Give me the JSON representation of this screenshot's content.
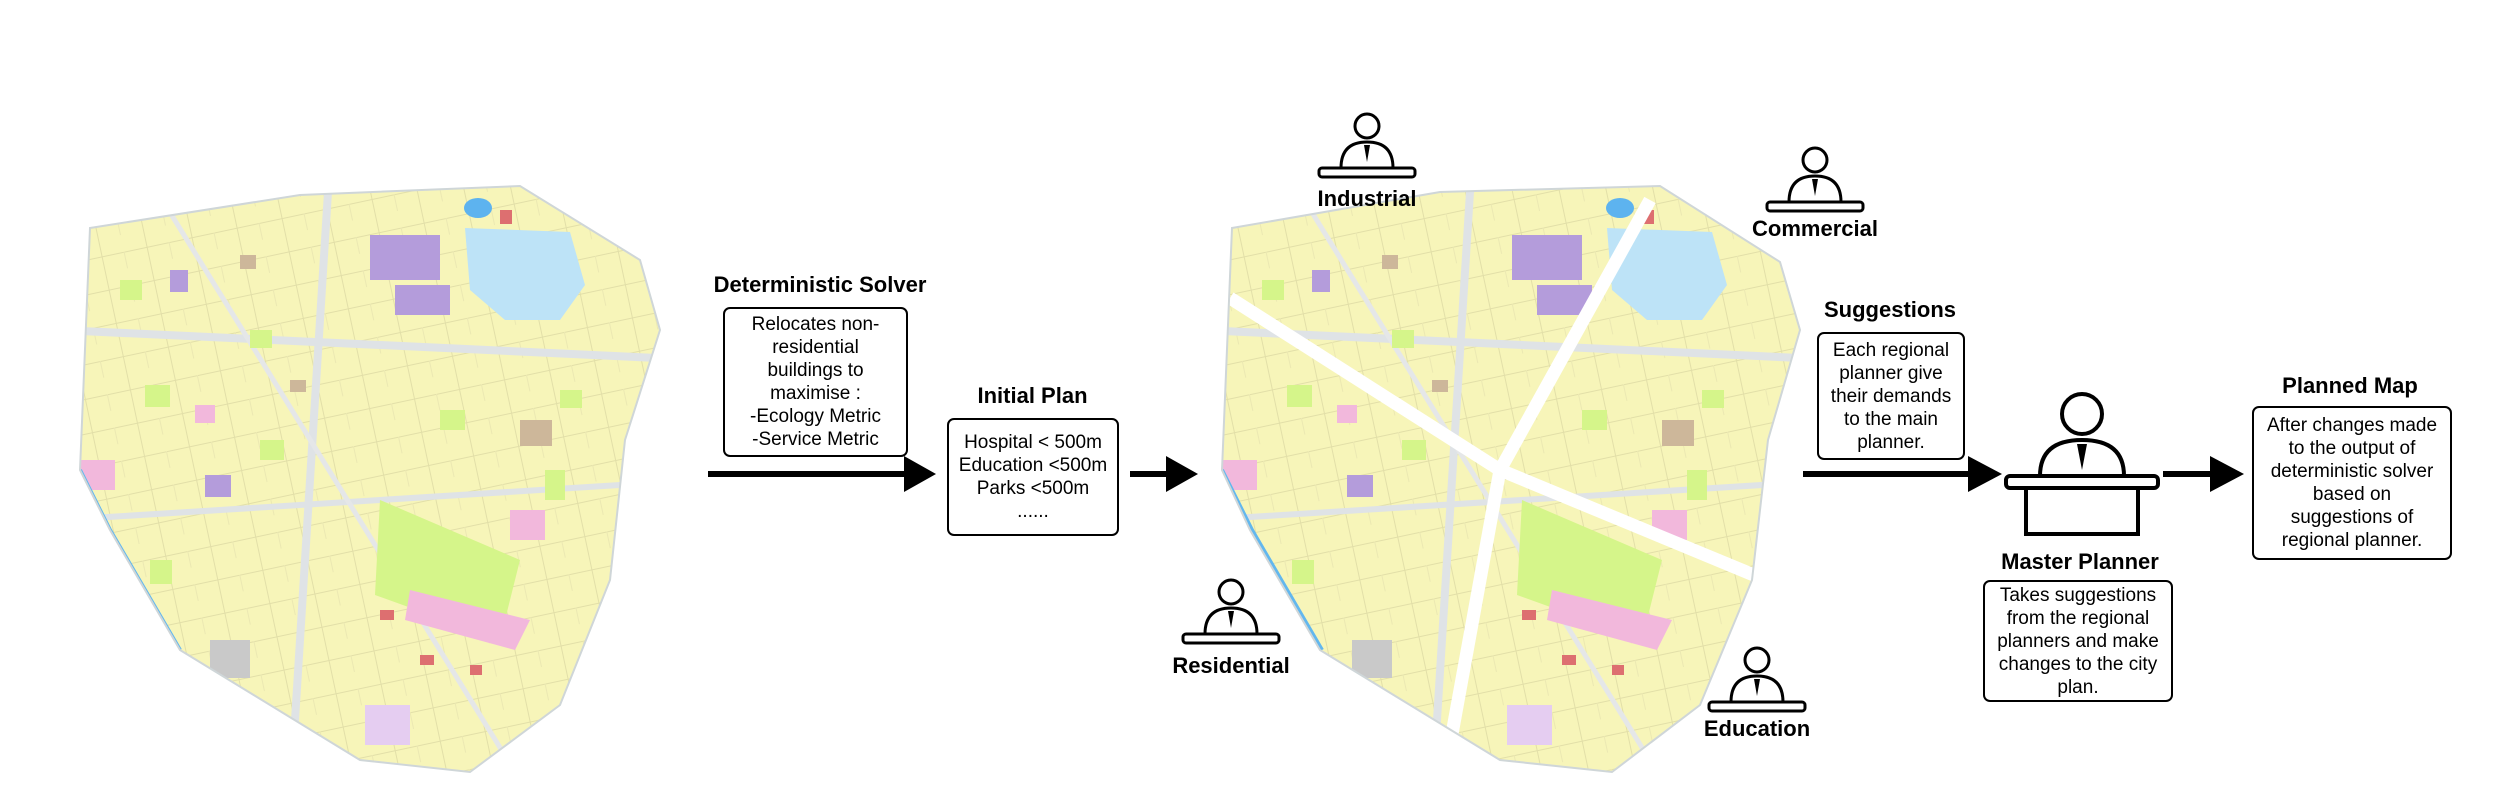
{
  "solver": {
    "title": "Deterministic Solver",
    "lines": [
      "Relocates non-",
      "residential",
      "buildings to",
      "maximise :",
      "-Ecology Metric",
      "-Service Metric"
    ]
  },
  "initial_plan": {
    "title": "Initial Plan",
    "lines": [
      "Hospital < 500m",
      "Education <500m",
      "Parks <500m",
      "......"
    ]
  },
  "planners": {
    "industrial": "Industrial",
    "commercial": "Commercial",
    "residential": "Residential",
    "education": "Education"
  },
  "suggestions": {
    "title": "Suggestions",
    "lines": [
      "Each regional",
      "planner give",
      "their demands",
      "to the main",
      "planner."
    ]
  },
  "master": {
    "title": "Master Planner",
    "lines": [
      "Takes suggestions",
      "from the regional",
      "planners and make",
      "changes to the city",
      "plan."
    ]
  },
  "planned_map": {
    "title": "Planned Map",
    "lines": [
      "After changes made",
      "to the output of",
      "deterministic solver",
      "based on",
      "suggestions of",
      "regional planner."
    ]
  },
  "colors": {
    "residential": "#f7f5b9",
    "green": "#d5f58a",
    "industrial": "#b49cdb",
    "water": "#bde3f7",
    "pink": "#f2b8dc",
    "brown": "#cdb79a",
    "road": "#e4e6e4"
  }
}
